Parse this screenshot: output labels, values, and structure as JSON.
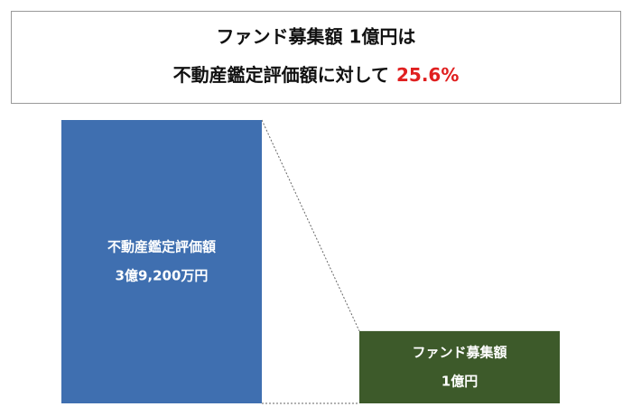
{
  "chart_data": {
    "type": "bar",
    "title_lines": [
      "ファンド募集額 1億円は",
      "不動産鑑定評価額に対して"
    ],
    "highlight": "25.6%",
    "highlight_color": "#e02020",
    "categories": [
      "不動産鑑定評価額",
      "ファンド募集額"
    ],
    "values": [
      392000000,
      100000000
    ],
    "value_labels": [
      "3億9,200万円",
      "1億円"
    ],
    "colors": [
      "#3f6fb0",
      "#3d5a2a"
    ]
  }
}
